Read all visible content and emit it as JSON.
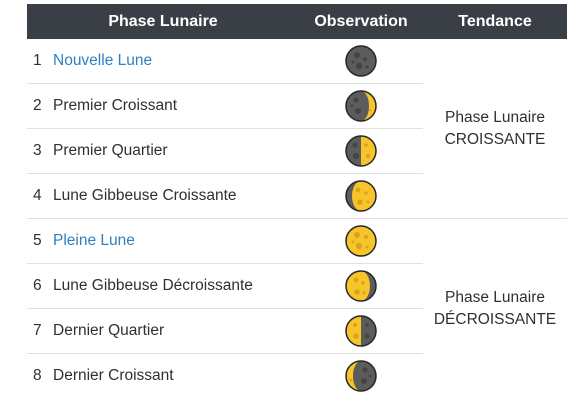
{
  "header": {
    "phase": "Phase Lunaire",
    "observation": "Observation",
    "tendance": "Tendance"
  },
  "rows": [
    {
      "num": "1",
      "label": "Nouvelle Lune",
      "link": true,
      "icon": "new-moon-icon"
    },
    {
      "num": "2",
      "label": "Premier Croissant",
      "link": false,
      "icon": "waxing-crescent-moon-icon"
    },
    {
      "num": "3",
      "label": "Premier Quartier",
      "link": false,
      "icon": "first-quarter-moon-icon"
    },
    {
      "num": "4",
      "label": "Lune Gibbeuse Croissante",
      "link": false,
      "icon": "waxing-gibbous-moon-icon"
    },
    {
      "num": "5",
      "label": "Pleine Lune",
      "link": true,
      "icon": "full-moon-icon"
    },
    {
      "num": "6",
      "label": "Lune Gibbeuse Décroissante",
      "link": false,
      "icon": "waning-gibbous-moon-icon"
    },
    {
      "num": "7",
      "label": "Dernier Quartier",
      "link": false,
      "icon": "last-quarter-moon-icon"
    },
    {
      "num": "8",
      "label": "Dernier Croissant",
      "link": false,
      "icon": "waning-crescent-moon-icon"
    }
  ],
  "trends": [
    {
      "line1": "Phase Lunaire",
      "line2": "CROISSANTE"
    },
    {
      "line1": "Phase Lunaire",
      "line2": "DÉCROISSANTE"
    }
  ],
  "colors": {
    "header_bg": "#3a3e45",
    "link": "#2f7fc1",
    "moon_lit": "#f7c52b",
    "moon_dark": "#5c5c5c",
    "moon_outline": "#262626"
  }
}
